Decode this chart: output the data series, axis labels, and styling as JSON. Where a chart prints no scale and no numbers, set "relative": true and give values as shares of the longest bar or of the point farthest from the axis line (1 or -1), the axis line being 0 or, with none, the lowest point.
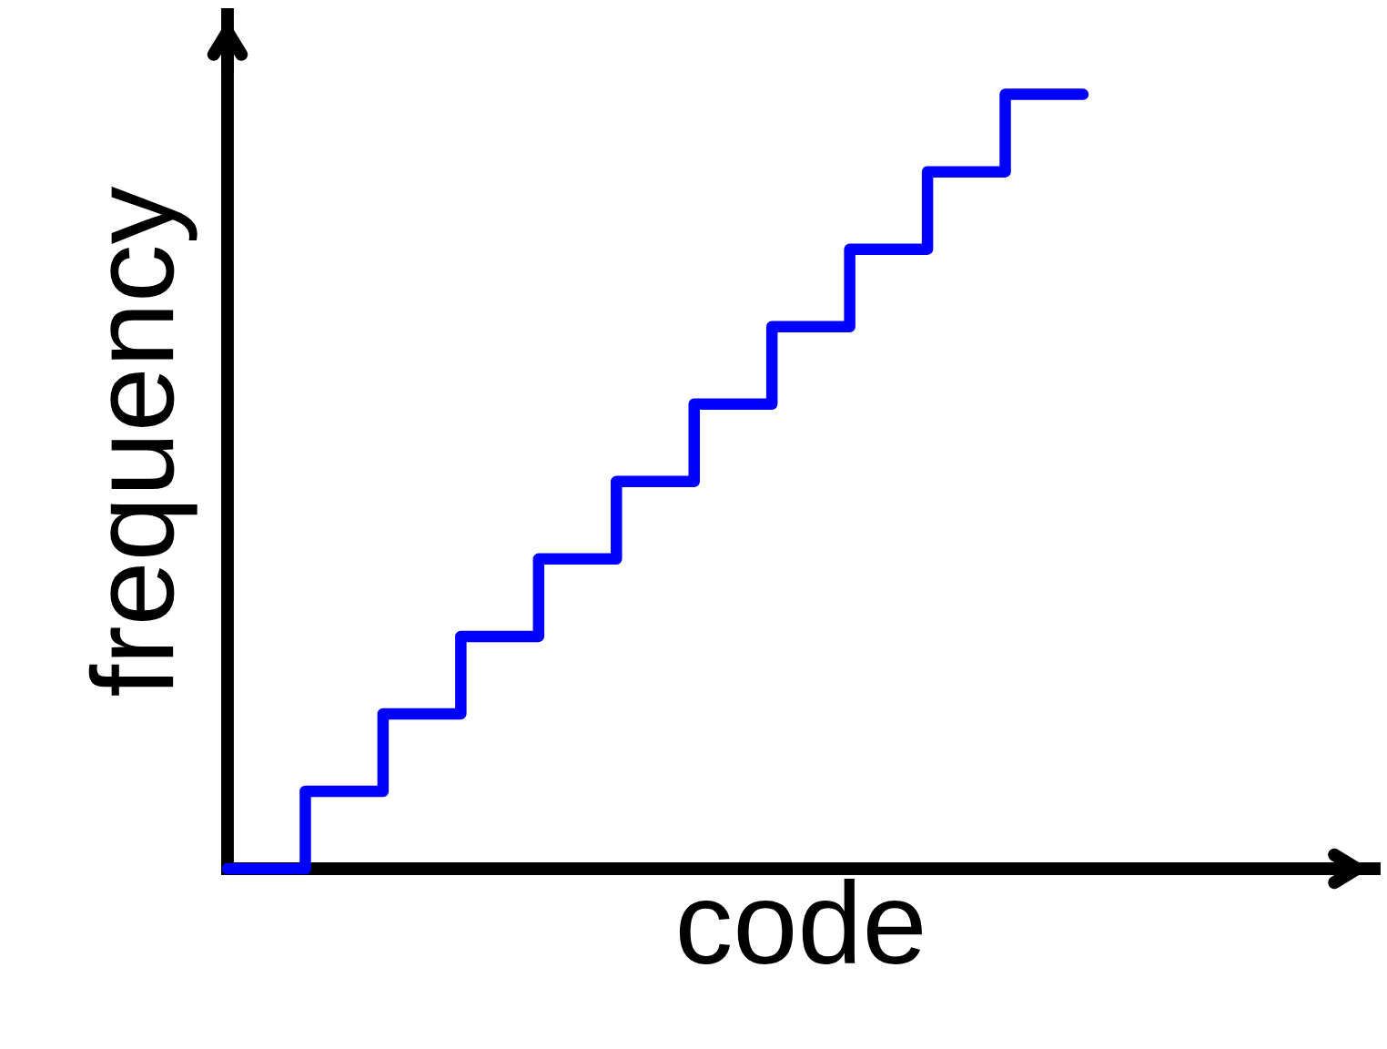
{
  "chart_data": {
    "type": "step",
    "relative": true,
    "xlabel": "code",
    "ylabel": "frequency",
    "categories": [
      null,
      null,
      null,
      null,
      null,
      null,
      null,
      null,
      null,
      null,
      null,
      null
    ],
    "series": [
      {
        "color": "#0000ff",
        "values": [
          0,
          0.1,
          0.2,
          0.3,
          0.4,
          0.5,
          0.6,
          0.7,
          0.8,
          0.9,
          1,
          1
        ]
      }
    ],
    "tick_labels": false,
    "grid": false,
    "legend": false
  }
}
